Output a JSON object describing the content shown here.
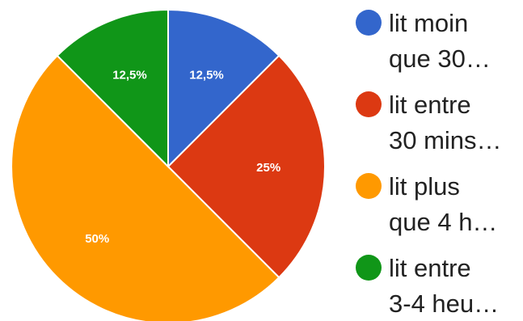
{
  "chart_data": {
    "type": "pie",
    "title": "",
    "slices": [
      {
        "label": "lit moin que 30…",
        "legend_lines": [
          "lit moin",
          "que 30…"
        ],
        "value": 12.5,
        "label_text": "12,5%",
        "color": "#3366cc"
      },
      {
        "label": "lit entre 30 mins…",
        "legend_lines": [
          "lit entre",
          "30 mins…"
        ],
        "value": 25,
        "label_text": "25%",
        "color": "#dc3912"
      },
      {
        "label": "lit plus que 4 h…",
        "legend_lines": [
          "lit plus",
          "que 4 h…"
        ],
        "value": 50,
        "label_text": "50%",
        "color": "#ff9900"
      },
      {
        "label": "lit entre 3-4 heu…",
        "legend_lines": [
          "lit entre",
          "3-4 heu…"
        ],
        "value": 12.5,
        "label_text": "12,5%",
        "color": "#109618"
      }
    ],
    "start_angle_deg": 0,
    "direction": "clockwise",
    "legend_position": "right",
    "slice_border_color": "#ffffff"
  }
}
